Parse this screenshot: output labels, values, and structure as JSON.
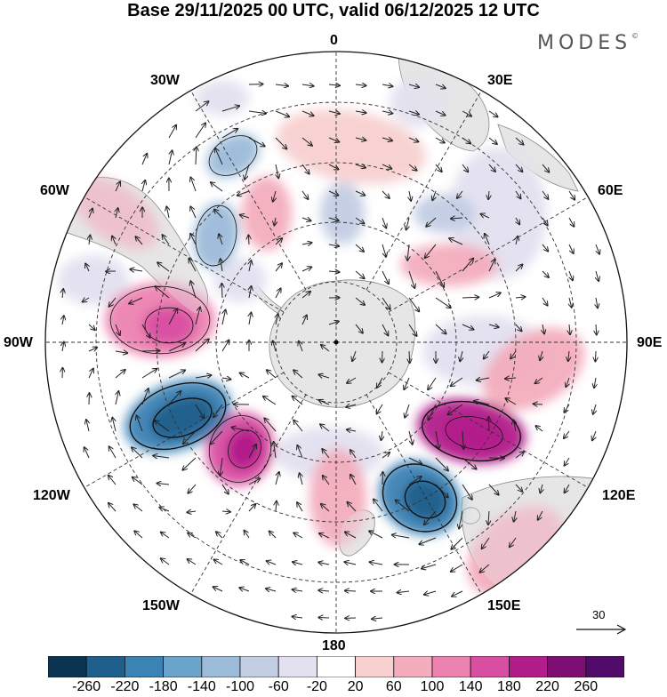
{
  "title": "Base 29/11/2025 00 UTC, valid 06/12/2025 12 UTC",
  "brand": "MODES",
  "brand_mark": "©",
  "longitude_labels": {
    "top": "0",
    "bottom": "180",
    "left": "90W",
    "right": "90E",
    "upper_left_1": "30W",
    "upper_left_2": "60W",
    "upper_right_1": "30E",
    "upper_right_2": "60E",
    "lower_left_1": "120W",
    "lower_left_2": "150W",
    "lower_right_1": "120E",
    "lower_right_2": "150E"
  },
  "reference_vector": {
    "value": "30"
  },
  "colorbar": {
    "ticks": [
      "-260",
      "-220",
      "-180",
      "-140",
      "-100",
      "-60",
      "-20",
      "20",
      "60",
      "100",
      "140",
      "180",
      "220",
      "260"
    ],
    "colors": [
      "#0b3452",
      "#1f5f8b",
      "#3b82b5",
      "#6aa3cc",
      "#9bbbd9",
      "#c3cde4",
      "#e3e0ef",
      "#ffffff",
      "#f8d0d0",
      "#f3adbd",
      "#ec82b0",
      "#d94fa2",
      "#b21c8b",
      "#7e0d74",
      "#520a6b"
    ]
  },
  "map_colors": {
    "land": "#e6e6e6",
    "land_edge": "#777777",
    "grid": "#333333",
    "vector": "#222222"
  }
}
